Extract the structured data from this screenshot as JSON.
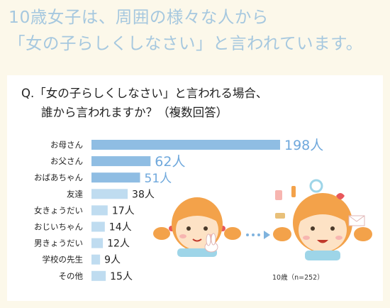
{
  "headline": {
    "line1": "10歳女子は、周囲の様々な人から",
    "line2": "「女の子らしくしなさい」と言われています。"
  },
  "question": {
    "line1": "Q.「女の子らしくしなさい」と言われる場合、",
    "line2": "誰から言われますか？（複数回答）"
  },
  "chart_data": {
    "type": "bar",
    "orientation": "horizontal",
    "unit": "人",
    "categories": [
      "お母さん",
      "お父さん",
      "おばあちゃん",
      "友達",
      "女きょうだい",
      "おじいちゃん",
      "男きょうだい",
      "学校の先生",
      "その他"
    ],
    "values": [
      198,
      62,
      51,
      38,
      17,
      14,
      12,
      9,
      15
    ],
    "value_labels": [
      "198人",
      "62人",
      "51人",
      "38人",
      "17人",
      "14人",
      "12人",
      "9人",
      "15人"
    ],
    "colors": {
      "top3_bar": "#8fbde3",
      "other_bar": "#bfdcf0",
      "top3_label": "#6fa8dc"
    },
    "grid": false,
    "legend": "none"
  },
  "sample_note": "10歳（n=252）",
  "illustrations": [
    "girl-pigtails-with-bunny-icon",
    "arrow-dots-icon",
    "girl-with-cosmetics-icon"
  ]
}
